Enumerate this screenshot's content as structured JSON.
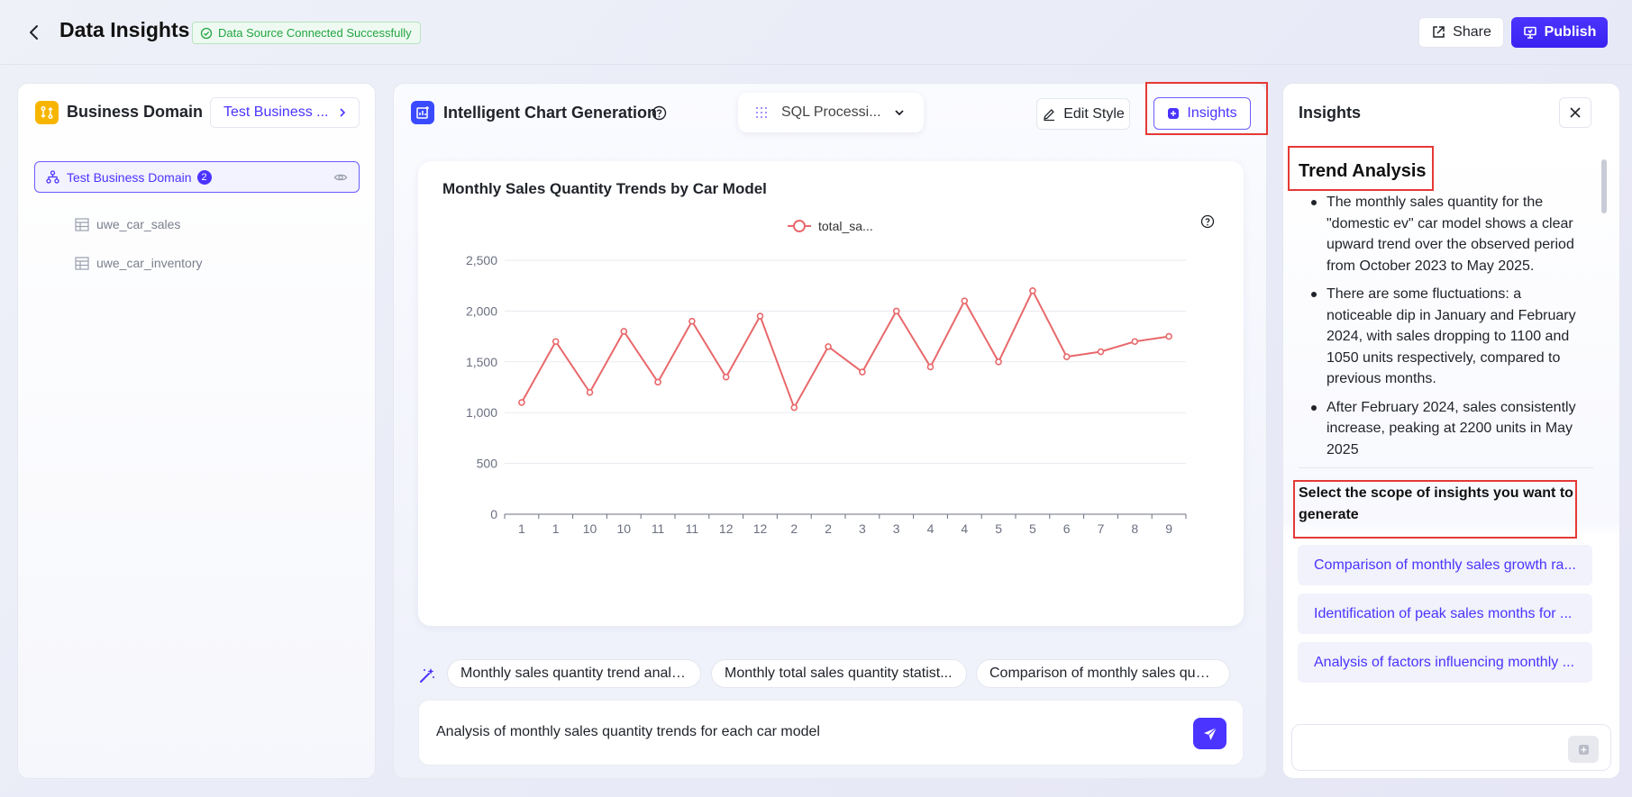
{
  "header": {
    "title": "Data Insights",
    "status": "Data Source Connected Successfully",
    "share_label": "Share",
    "publish_label": "Publish"
  },
  "left": {
    "heading": "Business Domain",
    "selected_domain": "Test Business ...",
    "tree_root": "Test Business Domain",
    "tree_count": "2",
    "tables": [
      "uwe_car_sales",
      "uwe_car_inventory"
    ]
  },
  "mid": {
    "heading": "Intelligent Chart Generation",
    "sql_select": "SQL Processi...",
    "edit_style_label": "Edit Style",
    "insights_label": "Insights",
    "suggestions": [
      "Monthly sales quantity trend analy...",
      "Monthly total sales quantity statist...",
      "Comparison of monthly sales quan..."
    ],
    "query": "Analysis of monthly sales quantity trends for each car model"
  },
  "chart_data": {
    "type": "line",
    "title": "Monthly Sales Quantity Trends by Car Model",
    "legend": "total_sa...",
    "legend_position": "top-center",
    "categories": [
      "1",
      "1",
      "10",
      "10",
      "11",
      "11",
      "12",
      "12",
      "2",
      "2",
      "3",
      "3",
      "4",
      "4",
      "5",
      "5",
      "6",
      "7",
      "8",
      "9"
    ],
    "series": [
      {
        "name": "total_sa...",
        "values": [
          1100,
          1700,
          1200,
          1800,
          1300,
          1900,
          1350,
          1950,
          1050,
          1650,
          1400,
          2000,
          1450,
          2100,
          1500,
          2200,
          1550,
          1600,
          1700,
          1750
        ]
      }
    ],
    "yticks": [
      "0",
      "500",
      "1,000",
      "1,500",
      "2,000",
      "2,500"
    ],
    "ylim": [
      0,
      2500
    ],
    "grid": true,
    "color": "#e8686b"
  },
  "insights": {
    "heading": "Insights",
    "trend_heading": "Trend Analysis",
    "bullets": [
      "The monthly sales quantity for the \"domestic ev\" car model shows a clear upward trend over the observed period from October 2023 to May 2025.",
      "There are some fluctuations: a noticeable dip in January and February 2024, with sales dropping to 1100 and 1050 units respectively, compared to previous months.",
      "After February 2024, sales consistently increase, peaking at 2200 units in May 2025"
    ],
    "scope_heading": "Select the scope of insights you want to generate",
    "scope_items": [
      "Comparison of monthly sales growth ra...",
      "Identification of peak sales months for ...",
      "Analysis of factors influencing monthly ..."
    ]
  },
  "colors": {
    "accent": "#4b34ff",
    "success": "#23a443",
    "highlight": "#e53935",
    "line": "#e8686b"
  }
}
